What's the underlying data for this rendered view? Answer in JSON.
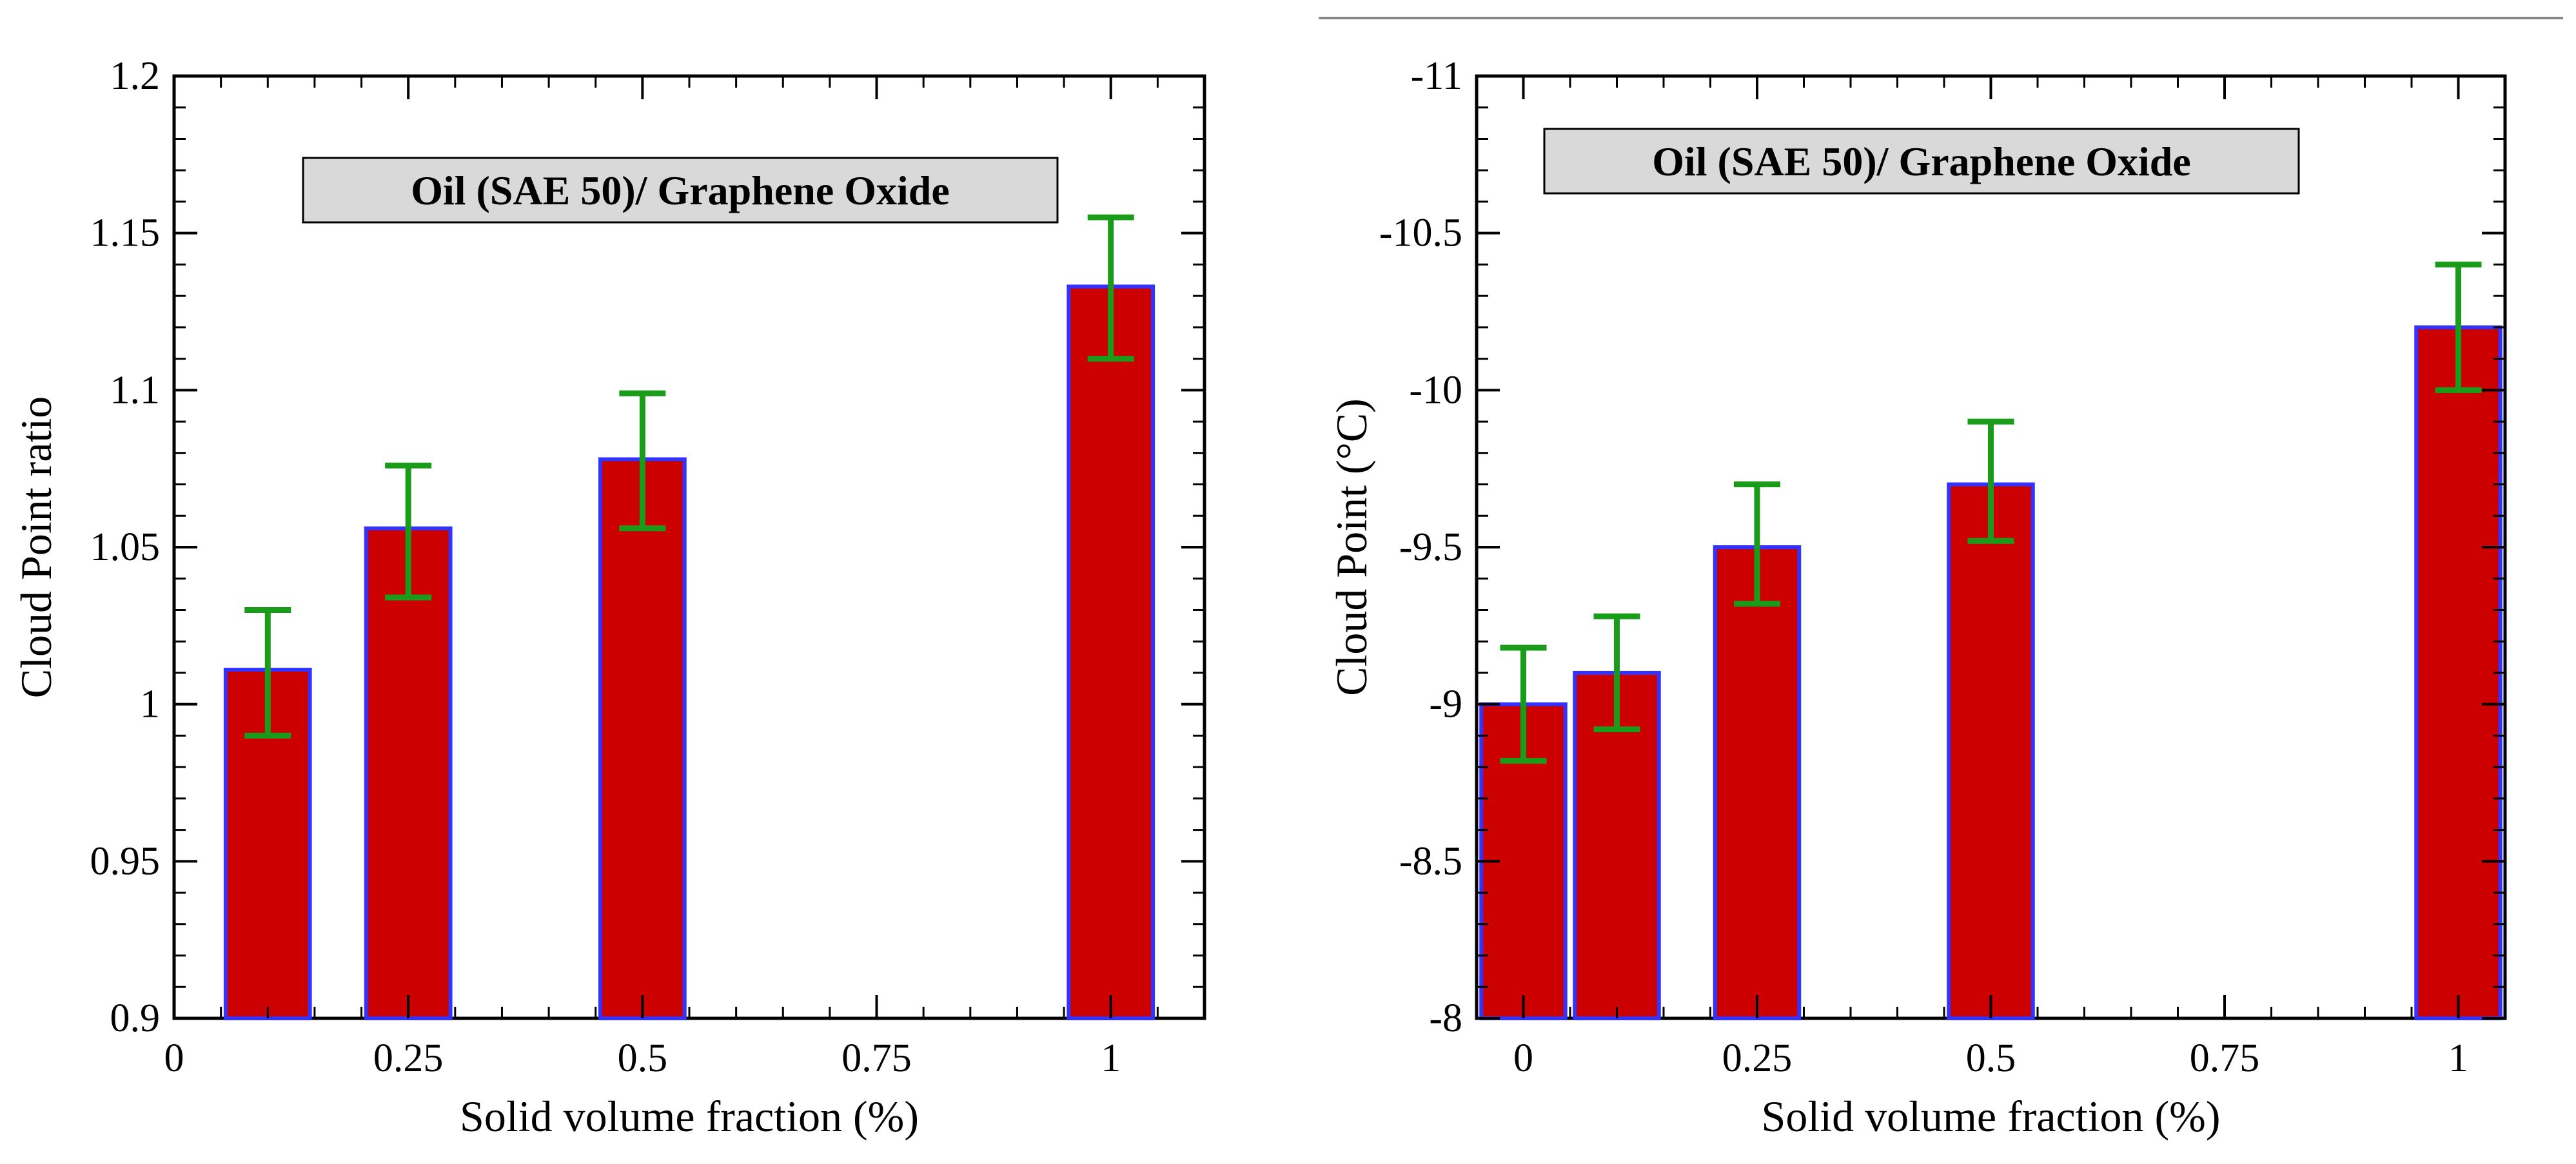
{
  "colors": {
    "bar_fill": "#cc0000",
    "bar_stroke": "#3333ff",
    "error_bar": "#1a9c1a",
    "label_box_fill": "#d9d9d9",
    "axis": "#000000",
    "separator": "#888888"
  },
  "chart_data": [
    {
      "type": "bar",
      "title_box": "Oil (SAE 50)/ Graphene Oxide",
      "xlabel": "Solid volume fraction (%)",
      "ylabel": "Cloud Point ratio",
      "xlim": [
        0,
        1.1
      ],
      "ylim": [
        0.9,
        1.2
      ],
      "y_inverted": false,
      "bar_width": 0.09,
      "x_ticks": [
        0,
        0.25,
        0.5,
        0.75,
        1
      ],
      "x_tick_labels": [
        "0",
        "0.25",
        "0.5",
        "0.75",
        "1"
      ],
      "y_ticks": [
        0.9,
        0.95,
        1,
        1.05,
        1.1,
        1.15,
        1.2
      ],
      "y_tick_labels": [
        "0.9",
        "0.95",
        "1",
        "1.05",
        "1.1",
        "1.15",
        "1.2"
      ],
      "x": [
        0.1,
        0.25,
        0.5,
        1
      ],
      "values": [
        1.011,
        1.056,
        1.078,
        1.133
      ],
      "error_low": [
        0.99,
        1.034,
        1.056,
        1.11
      ],
      "error_high": [
        1.03,
        1.076,
        1.099,
        1.155
      ]
    },
    {
      "type": "bar",
      "title_box": "Oil (SAE 50)/ Graphene Oxide",
      "xlabel": "Solid volume fraction (%)",
      "ylabel": "Cloud Point (°C)",
      "xlim": [
        -0.05,
        1.05
      ],
      "ylim": [
        -8,
        -11
      ],
      "y_inverted": true,
      "bar_width": 0.09,
      "x_ticks": [
        0,
        0.25,
        0.5,
        0.75,
        1
      ],
      "x_tick_labels": [
        "0",
        "0.25",
        "0.5",
        "0.75",
        "1"
      ],
      "y_ticks": [
        -8,
        -8.5,
        -9,
        -9.5,
        -10,
        -10.5,
        -11
      ],
      "y_tick_labels": [
        "-8",
        "-8.5",
        "-9",
        "-9.5",
        "-10",
        "-10.5",
        "-11"
      ],
      "x": [
        0,
        0.1,
        0.25,
        0.5,
        1
      ],
      "values": [
        -9,
        -9.1,
        -9.5,
        -9.7,
        -10.2
      ],
      "error_low": [
        -8.82,
        -8.92,
        -9.32,
        -9.52,
        -10
      ],
      "error_high": [
        -9.18,
        -9.28,
        -9.7,
        -9.9,
        -10.4
      ]
    }
  ]
}
